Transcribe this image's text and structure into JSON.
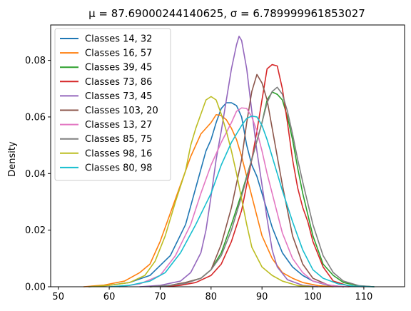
{
  "chart_data": {
    "type": "line",
    "title": "μ = 87.69000244140625, σ = 6.789999961853027",
    "xlabel": "",
    "ylabel": "Density",
    "xlim": [
      48.5,
      118
    ],
    "ylim": [
      0,
      0.0925
    ],
    "xticks": [
      50,
      60,
      70,
      80,
      90,
      100,
      110
    ],
    "yticks": [
      0.0,
      0.02,
      0.04,
      0.06,
      0.08
    ],
    "ytick_labels": [
      "0.00",
      "0.02",
      "0.04",
      "0.06",
      "0.08"
    ],
    "grid": false,
    "legend": "upper-left",
    "series": [
      {
        "name": "Classes 14, 32",
        "color": "#1f77b4",
        "points": [
          [
            56,
            0
          ],
          [
            60,
            0.0005
          ],
          [
            64,
            0.0015
          ],
          [
            68,
            0.004
          ],
          [
            72,
            0.011
          ],
          [
            75,
            0.022
          ],
          [
            77,
            0.035
          ],
          [
            79,
            0.048
          ],
          [
            80,
            0.052
          ],
          [
            81,
            0.058
          ],
          [
            82,
            0.063
          ],
          [
            83,
            0.065
          ],
          [
            84,
            0.065
          ],
          [
            85,
            0.064
          ],
          [
            86,
            0.06
          ],
          [
            87,
            0.05
          ],
          [
            88,
            0.043
          ],
          [
            89,
            0.039
          ],
          [
            90,
            0.033
          ],
          [
            91,
            0.027
          ],
          [
            92,
            0.021
          ],
          [
            94,
            0.012
          ],
          [
            96,
            0.007
          ],
          [
            98,
            0.004
          ],
          [
            100,
            0.002
          ],
          [
            103,
            0.0005
          ],
          [
            106,
            0
          ]
        ]
      },
      {
        "name": "Classes 16, 57",
        "color": "#ff7f0e",
        "points": [
          [
            55,
            0
          ],
          [
            59,
            0.0006
          ],
          [
            63,
            0.002
          ],
          [
            66,
            0.005
          ],
          [
            68,
            0.008
          ],
          [
            70,
            0.016
          ],
          [
            72,
            0.026
          ],
          [
            74,
            0.036
          ],
          [
            76,
            0.046
          ],
          [
            78,
            0.054
          ],
          [
            80,
            0.058
          ],
          [
            81,
            0.0608
          ],
          [
            82,
            0.0605
          ],
          [
            83,
            0.059
          ],
          [
            84,
            0.056
          ],
          [
            85,
            0.052
          ],
          [
            86,
            0.046
          ],
          [
            87,
            0.039
          ],
          [
            88,
            0.032
          ],
          [
            89,
            0.025
          ],
          [
            90,
            0.018
          ],
          [
            92,
            0.01
          ],
          [
            94,
            0.005
          ],
          [
            96,
            0.003
          ],
          [
            98,
            0.0015
          ],
          [
            101,
            0.0004
          ],
          [
            104,
            0
          ]
        ]
      },
      {
        "name": "Classes 39, 45",
        "color": "#2ca02c",
        "points": [
          [
            68,
            0
          ],
          [
            72,
            0.0005
          ],
          [
            75,
            0.0015
          ],
          [
            78,
            0.003
          ],
          [
            80,
            0.006
          ],
          [
            82,
            0.012
          ],
          [
            84,
            0.022
          ],
          [
            86,
            0.033
          ],
          [
            88,
            0.045
          ],
          [
            90,
            0.058
          ],
          [
            91,
            0.066
          ],
          [
            92,
            0.0688
          ],
          [
            93,
            0.068
          ],
          [
            94,
            0.066
          ],
          [
            95,
            0.06
          ],
          [
            96,
            0.052
          ],
          [
            97,
            0.042
          ],
          [
            98,
            0.033
          ],
          [
            100,
            0.018
          ],
          [
            102,
            0.008
          ],
          [
            104,
            0.004
          ],
          [
            106,
            0.0015
          ],
          [
            109,
            0.0003
          ],
          [
            112,
            0
          ]
        ]
      },
      {
        "name": "Classes 73, 86",
        "color": "#d62728",
        "points": [
          [
            70,
            0
          ],
          [
            74,
            0.0005
          ],
          [
            77,
            0.0015
          ],
          [
            80,
            0.004
          ],
          [
            82,
            0.008
          ],
          [
            84,
            0.016
          ],
          [
            86,
            0.027
          ],
          [
            88,
            0.045
          ],
          [
            89,
            0.055
          ],
          [
            90,
            0.066
          ],
          [
            91,
            0.077
          ],
          [
            92,
            0.0785
          ],
          [
            93,
            0.078
          ],
          [
            94,
            0.07
          ],
          [
            95,
            0.058
          ],
          [
            96,
            0.045
          ],
          [
            97,
            0.035
          ],
          [
            98,
            0.028
          ],
          [
            99,
            0.023
          ],
          [
            100,
            0.016
          ],
          [
            102,
            0.007
          ],
          [
            104,
            0.002
          ],
          [
            107,
            0.0003
          ],
          [
            110,
            0
          ]
        ]
      },
      {
        "name": "Classes 73, 45",
        "color": "#9467bd",
        "points": [
          [
            66,
            0
          ],
          [
            70,
            0.0005
          ],
          [
            74,
            0.002
          ],
          [
            76,
            0.005
          ],
          [
            78,
            0.012
          ],
          [
            79,
            0.02
          ],
          [
            80,
            0.032
          ],
          [
            81,
            0.045
          ],
          [
            82,
            0.055
          ],
          [
            83,
            0.066
          ],
          [
            84,
            0.077
          ],
          [
            85,
            0.0855
          ],
          [
            85.5,
            0.0885
          ],
          [
            86,
            0.087
          ],
          [
            87,
            0.077
          ],
          [
            88,
            0.062
          ],
          [
            89,
            0.048
          ],
          [
            90,
            0.036
          ],
          [
            91,
            0.024
          ],
          [
            92,
            0.013
          ],
          [
            93,
            0.007
          ],
          [
            95,
            0.0025
          ],
          [
            98,
            0.0005
          ],
          [
            101,
            0
          ]
        ]
      },
      {
        "name": "Classes 103, 20",
        "color": "#8c564b",
        "points": [
          [
            68,
            0
          ],
          [
            72,
            0.0005
          ],
          [
            75,
            0.0015
          ],
          [
            78,
            0.003
          ],
          [
            80,
            0.006
          ],
          [
            82,
            0.015
          ],
          [
            84,
            0.028
          ],
          [
            86,
            0.045
          ],
          [
            87,
            0.058
          ],
          [
            88,
            0.069
          ],
          [
            89,
            0.075
          ],
          [
            90,
            0.072
          ],
          [
            91,
            0.066
          ],
          [
            92,
            0.056
          ],
          [
            93,
            0.046
          ],
          [
            94,
            0.036
          ],
          [
            95,
            0.027
          ],
          [
            96,
            0.018
          ],
          [
            98,
            0.008
          ],
          [
            100,
            0.003
          ],
          [
            103,
            0.0006
          ],
          [
            106,
            0
          ]
        ]
      },
      {
        "name": "Classes 13, 27",
        "color": "#e377c2",
        "points": [
          [
            62,
            0
          ],
          [
            66,
            0.001
          ],
          [
            70,
            0.004
          ],
          [
            73,
            0.011
          ],
          [
            76,
            0.022
          ],
          [
            78,
            0.033
          ],
          [
            80,
            0.043
          ],
          [
            82,
            0.051
          ],
          [
            84,
            0.058
          ],
          [
            85,
            0.062
          ],
          [
            86,
            0.0632
          ],
          [
            87,
            0.063
          ],
          [
            88,
            0.06
          ],
          [
            89,
            0.055
          ],
          [
            90,
            0.048
          ],
          [
            91,
            0.04
          ],
          [
            92,
            0.033
          ],
          [
            93,
            0.026
          ],
          [
            94,
            0.019
          ],
          [
            96,
            0.01
          ],
          [
            98,
            0.005
          ],
          [
            100,
            0.002
          ],
          [
            104,
            0.0003
          ],
          [
            107,
            0
          ]
        ]
      },
      {
        "name": "Classes 85, 75",
        "color": "#7f7f7f",
        "points": [
          [
            68,
            0
          ],
          [
            72,
            0.0005
          ],
          [
            75,
            0.0012
          ],
          [
            78,
            0.003
          ],
          [
            80,
            0.006
          ],
          [
            82,
            0.011
          ],
          [
            84,
            0.02
          ],
          [
            86,
            0.032
          ],
          [
            88,
            0.045
          ],
          [
            90,
            0.058
          ],
          [
            91,
            0.065
          ],
          [
            92,
            0.069
          ],
          [
            93,
            0.0705
          ],
          [
            94,
            0.068
          ],
          [
            95,
            0.062
          ],
          [
            96,
            0.054
          ],
          [
            97,
            0.045
          ],
          [
            98,
            0.037
          ],
          [
            100,
            0.022
          ],
          [
            102,
            0.011
          ],
          [
            104,
            0.005
          ],
          [
            106,
            0.002
          ],
          [
            109,
            0.0004
          ],
          [
            112,
            0
          ]
        ]
      },
      {
        "name": "Classes 98, 16",
        "color": "#bcbd22",
        "points": [
          [
            56,
            0
          ],
          [
            60,
            0.0005
          ],
          [
            64,
            0.0015
          ],
          [
            67,
            0.004
          ],
          [
            69,
            0.009
          ],
          [
            71,
            0.018
          ],
          [
            73,
            0.03
          ],
          [
            75,
            0.041
          ],
          [
            76,
            0.05
          ],
          [
            77,
            0.056
          ],
          [
            78,
            0.061
          ],
          [
            79,
            0.066
          ],
          [
            80,
            0.0672
          ],
          [
            81,
            0.066
          ],
          [
            82,
            0.061
          ],
          [
            83,
            0.055
          ],
          [
            84,
            0.048
          ],
          [
            85,
            0.04
          ],
          [
            86,
            0.031
          ],
          [
            87,
            0.022
          ],
          [
            88,
            0.014
          ],
          [
            90,
            0.007
          ],
          [
            92,
            0.004
          ],
          [
            94,
            0.002
          ],
          [
            97,
            0.0004
          ],
          [
            100,
            0
          ]
        ]
      },
      {
        "name": "Classes 80, 98",
        "color": "#17becf",
        "points": [
          [
            60,
            0
          ],
          [
            64,
            0.0005
          ],
          [
            68,
            0.002
          ],
          [
            71,
            0.005
          ],
          [
            74,
            0.012
          ],
          [
            77,
            0.022
          ],
          [
            80,
            0.033
          ],
          [
            82,
            0.043
          ],
          [
            84,
            0.051
          ],
          [
            86,
            0.057
          ],
          [
            87,
            0.0595
          ],
          [
            88,
            0.0603
          ],
          [
            89,
            0.06
          ],
          [
            90,
            0.057
          ],
          [
            91,
            0.052
          ],
          [
            92,
            0.046
          ],
          [
            93,
            0.04
          ],
          [
            94,
            0.034
          ],
          [
            96,
            0.023
          ],
          [
            98,
            0.013
          ],
          [
            100,
            0.006
          ],
          [
            102,
            0.003
          ],
          [
            105,
            0.001
          ],
          [
            108,
            0.0002
          ],
          [
            112,
            0
          ]
        ]
      }
    ]
  }
}
